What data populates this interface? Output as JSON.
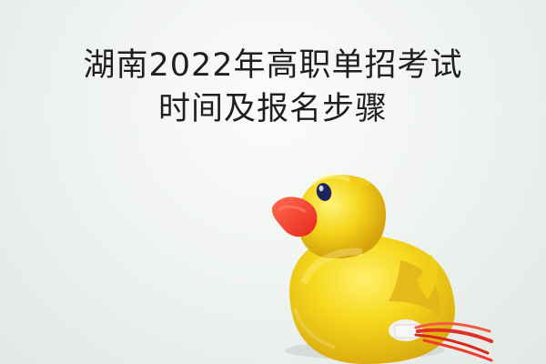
{
  "title": {
    "line1": "湖南2022年高职单招考试",
    "line2": "时间及报名步骤"
  },
  "illustration": {
    "subject": "rubber-duck-icon",
    "colors": {
      "body": "#f6d81c",
      "shadow": "#d9a90f",
      "beak": "#f0361f",
      "eye": "#1e245c",
      "background": "#eef2ef"
    }
  }
}
